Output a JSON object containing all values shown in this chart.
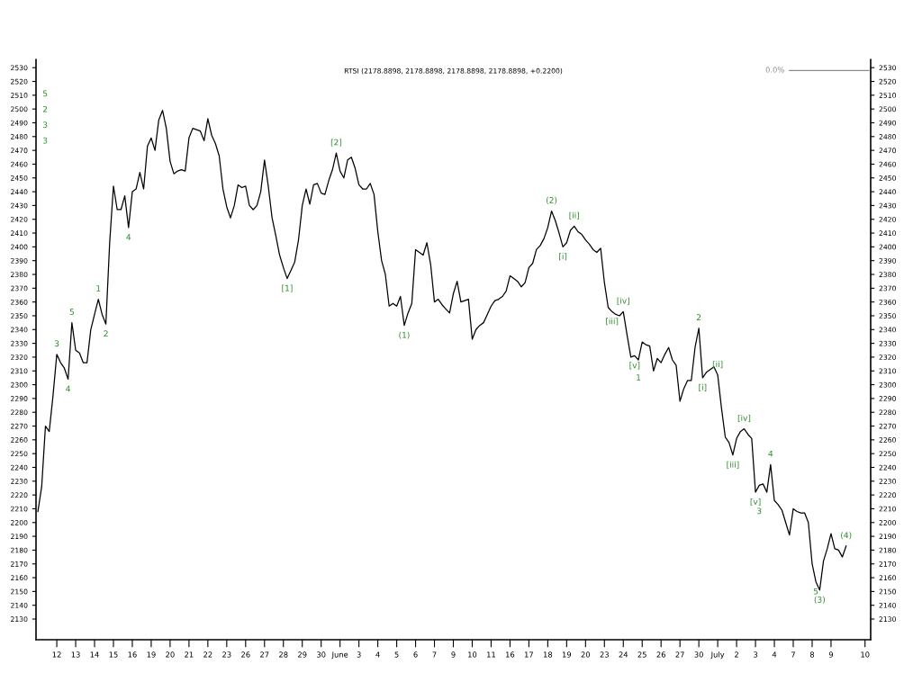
{
  "chart_data": {
    "type": "line",
    "title": "RTSI (2178.8898, 2178.8898, 2178.8898, 2178.8898, +0.2200)",
    "line_style": "solid",
    "categories": [
      null,
      null,
      null,
      null,
      null,
      "12",
      null,
      null,
      null,
      null,
      "13",
      null,
      null,
      null,
      null,
      "14",
      null,
      null,
      null,
      null,
      "15",
      null,
      null,
      null,
      null,
      "16",
      null,
      null,
      null,
      null,
      "19",
      null,
      null,
      null,
      null,
      "20",
      null,
      null,
      null,
      null,
      "21",
      null,
      null,
      null,
      null,
      "22",
      null,
      null,
      null,
      null,
      "23",
      null,
      null,
      null,
      null,
      "26",
      null,
      null,
      null,
      null,
      "27",
      null,
      null,
      null,
      null,
      "28",
      null,
      null,
      null,
      null,
      "29",
      null,
      null,
      null,
      null,
      "30",
      null,
      null,
      null,
      null,
      "June",
      null,
      null,
      null,
      null,
      "3",
      null,
      null,
      null,
      null,
      "4",
      null,
      null,
      null,
      null,
      "5",
      null,
      null,
      null,
      null,
      "6",
      null,
      null,
      null,
      null,
      "7",
      null,
      null,
      null,
      null,
      "9",
      null,
      null,
      null,
      null,
      "10",
      null,
      null,
      null,
      null,
      "11",
      null,
      null,
      null,
      null,
      "16",
      null,
      null,
      null,
      null,
      "17",
      null,
      null,
      null,
      null,
      "18",
      null,
      null,
      null,
      null,
      "19",
      null,
      null,
      null,
      null,
      "20",
      null,
      null,
      null,
      null,
      "23",
      null,
      null,
      null,
      null,
      "24",
      null,
      null,
      null,
      null,
      "25",
      null,
      null,
      null,
      null,
      "26",
      null,
      null,
      null,
      null,
      "27",
      null,
      null,
      null,
      null,
      "30",
      null,
      null,
      null,
      null,
      "July",
      null,
      null,
      null,
      null,
      "2",
      null,
      null,
      null,
      null,
      "3",
      null,
      null,
      null,
      null,
      "4",
      null,
      null,
      null,
      null,
      "7",
      null,
      null,
      null,
      null,
      "8",
      null,
      null,
      null,
      null,
      "9",
      null,
      null,
      null,
      null,
      null,
      null,
      null,
      null,
      "10",
      null
    ],
    "series": [
      {
        "color": "#000000",
        "values": [
          2208,
          2226,
          2270,
          2266,
          2292,
          2322,
          2316,
          2312,
          2304,
          2345,
          2325,
          2323,
          2316,
          2316,
          2340,
          2351,
          2362,
          2351,
          2344,
          2403,
          2444,
          2427,
          2427,
          2437,
          2414,
          2440,
          2442,
          2454,
          2442,
          2473,
          2479,
          2470,
          2492,
          2499,
          2486,
          2462,
          2453,
          2455,
          2456,
          2455,
          2479,
          2486,
          2485,
          2484,
          2477,
          2493,
          2481,
          2475,
          2466,
          2442,
          2429,
          2421,
          2430,
          2445,
          2443,
          2444,
          2430,
          2427,
          2430,
          2440,
          2463,
          2444,
          2421,
          2408,
          2394,
          2385,
          2377,
          2383,
          2389,
          2405,
          2430,
          2442,
          2431,
          2445,
          2446,
          2439,
          2438,
          2448,
          2456,
          2468,
          2455,
          2450,
          2463,
          2465,
          2457,
          2445,
          2442,
          2442,
          2446,
          2438,
          2411,
          2390,
          2380,
          2357,
          2359,
          2357,
          2364,
          2343,
          2352,
          2359,
          2398,
          2396,
          2394,
          2403,
          2387,
          2360,
          2362,
          2358,
          2355,
          2352,
          2366,
          2375,
          2360,
          2361,
          2362,
          2333,
          2340,
          2343,
          2345,
          2351,
          2357,
          2361,
          2362,
          2364,
          2368,
          2379,
          2377,
          2375,
          2371,
          2374,
          2385,
          2388,
          2398,
          2401,
          2406,
          2414,
          2426,
          2419,
          2410,
          2400,
          2403,
          2412,
          2415,
          2411,
          2409,
          2405,
          2402,
          2398,
          2396,
          2399,
          2374,
          2356,
          2353,
          2351,
          2350,
          2353,
          2336,
          2320,
          2321,
          2318,
          2331,
          2329,
          2328,
          2310,
          2319,
          2316,
          2322,
          2327,
          2318,
          2314,
          2288,
          2297,
          2303,
          2303,
          2327,
          2341,
          2305,
          2309,
          2311,
          2313,
          2307,
          2283,
          2262,
          2258,
          2249,
          2261,
          2266,
          2268,
          2264,
          2261,
          2222,
          2227,
          2228,
          2222,
          2242,
          2216,
          2213,
          2209,
          2200,
          2191,
          2210,
          2208,
          2207,
          2207,
          2200,
          2170,
          2157,
          2151,
          2172,
          2181,
          2192,
          2181,
          2180,
          2175,
          2183,
          null,
          null,
          null,
          null,
          null,
          null
        ]
      },
      {
        "name": "0.0%",
        "color": "#8c8c8c",
        "values": [
          null,
          null,
          null,
          null,
          null,
          null,
          null,
          null,
          null,
          null,
          null,
          null,
          null,
          null,
          null,
          null,
          null,
          null,
          null,
          null,
          null,
          null,
          null,
          null,
          null,
          null,
          null,
          null,
          null,
          null,
          null,
          null,
          null,
          null,
          null,
          null,
          null,
          null,
          null,
          null,
          null,
          null,
          null,
          null,
          null,
          null,
          null,
          null,
          null,
          null,
          null,
          null,
          null,
          null,
          null,
          null,
          null,
          null,
          null,
          null,
          null,
          null,
          null,
          null,
          null,
          null,
          null,
          null,
          null,
          null,
          null,
          null,
          null,
          null,
          null,
          null,
          null,
          null,
          null,
          null,
          null,
          null,
          null,
          null,
          null,
          null,
          null,
          null,
          null,
          null,
          null,
          null,
          null,
          null,
          null,
          null,
          null,
          null,
          null,
          null,
          null,
          null,
          null,
          null,
          null,
          null,
          null,
          null,
          null,
          null,
          null,
          null,
          null,
          null,
          null,
          null,
          null,
          null,
          null,
          null,
          null,
          null,
          null,
          null,
          null,
          null,
          null,
          null,
          null,
          null,
          null,
          null,
          null,
          null,
          null,
          null,
          null,
          null,
          null,
          null,
          null,
          null,
          null,
          null,
          null,
          null,
          null,
          null,
          null,
          null,
          null,
          null,
          null,
          null,
          null,
          null,
          null,
          null,
          null,
          null,
          null,
          null,
          null,
          null,
          null,
          null,
          null,
          null,
          null,
          null,
          null,
          null,
          null,
          null,
          null,
          null,
          null,
          null,
          null,
          null,
          null,
          null,
          null,
          null,
          null,
          null,
          null,
          null,
          null,
          null,
          null,
          null,
          null,
          null,
          null,
          null,
          null,
          null,
          null,
          2528,
          2528,
          2528,
          2528,
          2528,
          2528,
          2528,
          2528,
          2528,
          2528,
          2528,
          2528,
          2528,
          2528,
          2528,
          2528,
          2528,
          2528,
          2528,
          2528,
          2528,
          2528
        ]
      }
    ],
    "ylim": [
      2115,
      2536
    ],
    "yticks": [
      2130,
      2140,
      2150,
      2160,
      2170,
      2180,
      2190,
      2200,
      2210,
      2220,
      2230,
      2240,
      2250,
      2260,
      2270,
      2280,
      2290,
      2300,
      2310,
      2320,
      2330,
      2340,
      2350,
      2360,
      2370,
      2380,
      2390,
      2400,
      2410,
      2420,
      2430,
      2440,
      2450,
      2460,
      2470,
      2480,
      2490,
      2500,
      2510,
      2520,
      2530
    ],
    "y2lim": [
      2115,
      2536
    ],
    "y2ticks": [
      2130,
      2140,
      2150,
      2160,
      2170,
      2180,
      2190,
      2200,
      2210,
      2220,
      2230,
      2240,
      2250,
      2260,
      2270,
      2280,
      2290,
      2300,
      2310,
      2320,
      2330,
      2340,
      2350,
      2360,
      2370,
      2380,
      2390,
      2400,
      2410,
      2420,
      2430,
      2440,
      2450,
      2460,
      2470,
      2480,
      2490,
      2500,
      2510,
      2520,
      2530
    ],
    "annotations": [
      "5",
      "2",
      "3",
      "3",
      {
        "text": "3",
        "y": 2322
      },
      {
        "text": "4",
        "y": 2304
      },
      {
        "text": "5",
        "y": 2345
      },
      {
        "text": "1",
        "y": 2362
      },
      {
        "text": "2",
        "y": 2344
      },
      {
        "text": "4",
        "y": 2414
      },
      {
        "text": "[1]",
        "y": 2377
      },
      {
        "text": "[2]",
        "y": 2468
      },
      {
        "text": "(1)",
        "y": 2343
      },
      {
        "text": "(2)",
        "y": 2426
      },
      {
        "text": "[i]",
        "y": 2400
      },
      {
        "text": "[ii]",
        "y": 2415
      },
      {
        "text": "[iii]",
        "y": 2353
      },
      {
        "text": "[iv]",
        "y": 2353
      },
      {
        "text": "[v]",
        "y": 2321
      },
      {
        "text": "1",
        "y": 2318
      },
      {
        "text": "2",
        "y": 2341
      },
      {
        "text": "[i]",
        "y": 2305
      },
      {
        "text": "[ii]",
        "y": 2307
      },
      {
        "text": "[iii]",
        "y": 2249
      },
      {
        "text": "[iv]",
        "y": 2268
      },
      {
        "text": "[v]",
        "y": 2222
      },
      {
        "text": "3",
        "y": 2227
      },
      {
        "text": "4",
        "y": 2242
      },
      {
        "text": "5",
        "y": 2157
      },
      {
        "text": "(3)",
        "y": 2151
      },
      {
        "text": "(4)",
        "y": 2183
      }
    ]
  }
}
